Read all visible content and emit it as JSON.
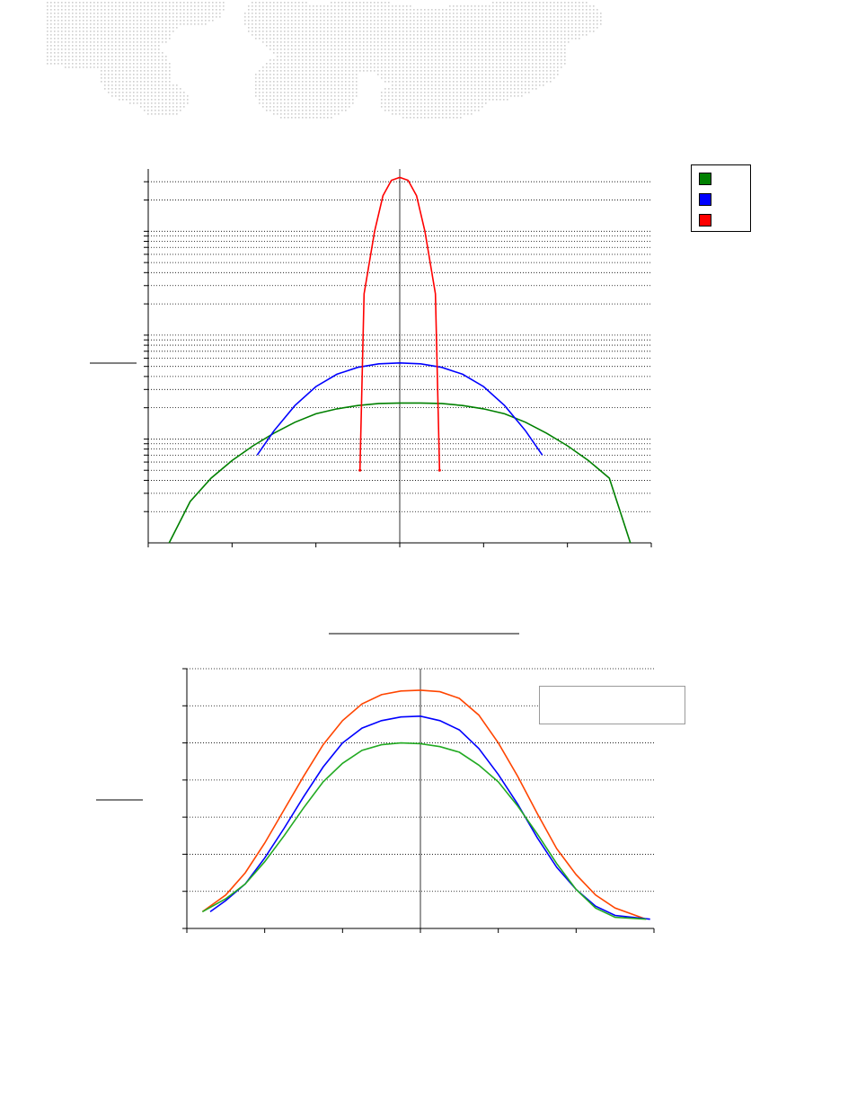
{
  "chart_data": [
    {
      "type": "line",
      "scale": "log-y",
      "grid": true,
      "legend": "top-right",
      "x": [
        -6,
        -5.5,
        -5,
        -4.5,
        -4,
        -3.5,
        -3,
        -2.5,
        -2,
        -1.5,
        -1,
        -0.5,
        0,
        0.5,
        1,
        1.5,
        2,
        2.5,
        3,
        3.5,
        4,
        4.5,
        5,
        5.5,
        6
      ],
      "series": [
        {
          "color": "#008000",
          "x": [
            -5.5,
            -5,
            -4.5,
            -4,
            -3.5,
            -3,
            -2.5,
            -2,
            -1.5,
            -1,
            -0.5,
            0,
            0.5,
            1,
            1.5,
            2,
            2.5,
            3,
            3.5,
            4,
            4.5,
            5,
            5.5
          ],
          "values": [
            0.1,
            0.25,
            0.42,
            0.62,
            0.86,
            1.14,
            1.45,
            1.75,
            1.95,
            2.1,
            2.2,
            2.22,
            2.22,
            2.2,
            2.1,
            1.95,
            1.75,
            1.45,
            1.14,
            0.86,
            0.62,
            0.42,
            0.1
          ]
        },
        {
          "color": "#0000ff",
          "x": [
            -3.4,
            -3,
            -2.5,
            -2,
            -1.5,
            -1,
            -0.5,
            0,
            0.5,
            1,
            1.5,
            2,
            2.5,
            3,
            3.4
          ],
          "values": [
            0.7,
            1.2,
            2.1,
            3.2,
            4.2,
            4.9,
            5.3,
            5.4,
            5.3,
            4.9,
            4.2,
            3.2,
            2.1,
            1.2,
            0.7
          ]
        },
        {
          "color": "#ff0000",
          "x": [
            -0.95,
            -0.85,
            -0.6,
            -0.4,
            -0.2,
            0,
            0.2,
            0.4,
            0.6,
            0.85,
            0.95
          ],
          "values": [
            0.5,
            25,
            100,
            220,
            310,
            330,
            310,
            220,
            100,
            25,
            0.5
          ]
        }
      ]
    },
    {
      "type": "line",
      "grid": true,
      "legend": "top-right",
      "xlim": [
        -6,
        6
      ],
      "ylim": [
        0,
        7
      ],
      "series": [
        {
          "color": "#ff4500",
          "x": [
            -5.6,
            -5,
            -4.5,
            -4,
            -3.5,
            -3,
            -2.5,
            -2,
            -1.5,
            -1,
            -0.5,
            0,
            0.5,
            1,
            1.5,
            2,
            2.5,
            3,
            3.5,
            4,
            4.5,
            5,
            5.8
          ],
          "values": [
            0.45,
            0.9,
            1.5,
            2.3,
            3.2,
            4.1,
            4.95,
            5.6,
            6.05,
            6.3,
            6.4,
            6.42,
            6.38,
            6.2,
            5.75,
            5.0,
            4.1,
            3.1,
            2.15,
            1.45,
            0.9,
            0.55,
            0.25
          ]
        },
        {
          "color": "#0000ff",
          "x": [
            -5.4,
            -5,
            -4.5,
            -4,
            -3.5,
            -3,
            -2.5,
            -2,
            -1.5,
            -1,
            -0.5,
            0,
            0.5,
            1,
            1.5,
            2,
            2.5,
            3,
            3.5,
            4,
            4.5,
            5,
            5.9
          ],
          "values": [
            0.45,
            0.75,
            1.2,
            1.9,
            2.7,
            3.55,
            4.35,
            5.0,
            5.4,
            5.6,
            5.7,
            5.72,
            5.6,
            5.35,
            4.85,
            4.15,
            3.35,
            2.45,
            1.65,
            1.05,
            0.6,
            0.35,
            0.25
          ]
        },
        {
          "color": "#22aa22",
          "x": [
            -5.6,
            -5,
            -4.5,
            -4,
            -3.5,
            -3,
            -2.5,
            -2,
            -1.5,
            -1,
            -0.5,
            0,
            0.5,
            1,
            1.5,
            2,
            2.5,
            3,
            3.5,
            4,
            4.5,
            5,
            5.8
          ],
          "values": [
            0.45,
            0.8,
            1.2,
            1.8,
            2.5,
            3.25,
            3.95,
            4.45,
            4.8,
            4.95,
            5.0,
            4.98,
            4.9,
            4.75,
            4.4,
            3.95,
            3.3,
            2.55,
            1.75,
            1.05,
            0.55,
            0.3,
            0.25
          ]
        }
      ]
    }
  ]
}
